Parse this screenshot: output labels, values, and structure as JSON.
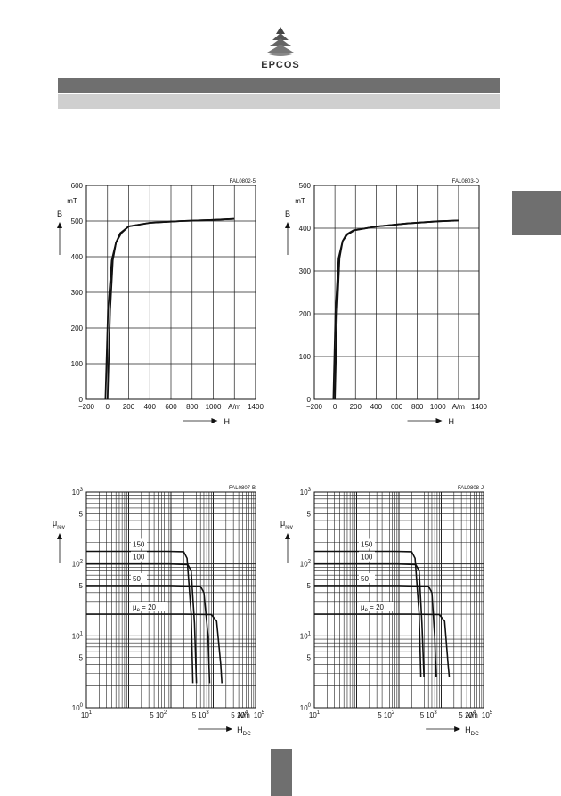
{
  "brand": {
    "name": "EPCOS"
  },
  "chart_data": [
    {
      "type": "line",
      "code": "FAL0802-5",
      "xlabel": "H",
      "x_unit": "A/m",
      "ylabel": "B",
      "y_unit": "mT",
      "xlim": [
        -200,
        1400
      ],
      "ylim": [
        0,
        600
      ],
      "x_ticks": [
        "−200",
        "0",
        "200",
        "400",
        "600",
        "800",
        "1000",
        "1400"
      ],
      "y_ticks": [
        "0",
        "100",
        "200",
        "300",
        "400",
        "500",
        "600"
      ],
      "grid": true,
      "series": [
        {
          "x": [
            0,
            25,
            50,
            80,
            120,
            200,
            400,
            700,
            1000,
            1200
          ],
          "y": [
            0,
            250,
            390,
            440,
            466,
            485,
            495,
            500,
            503,
            506
          ]
        },
        {
          "x": [
            -20,
            5,
            40,
            80,
            130,
            200,
            400,
            700,
            1000,
            1200
          ],
          "y": [
            0,
            250,
            390,
            440,
            466,
            485,
            495,
            500,
            503,
            506
          ]
        }
      ]
    },
    {
      "type": "line",
      "code": "FAL0803-D",
      "xlabel": "H",
      "x_unit": "A/m",
      "ylabel": "B",
      "y_unit": "mT",
      "xlim": [
        -200,
        1400
      ],
      "ylim": [
        0,
        500
      ],
      "x_ticks": [
        "−200",
        "0",
        "200",
        "400",
        "600",
        "800",
        "1000",
        "1400"
      ],
      "y_ticks": [
        "0",
        "100",
        "200",
        "300",
        "400",
        "500"
      ],
      "grid": true,
      "series": [
        {
          "x": [
            0,
            20,
            45,
            75,
            110,
            180,
            400,
            700,
            1000,
            1200
          ],
          "y": [
            0,
            200,
            330,
            370,
            385,
            395,
            404,
            411,
            416,
            418
          ]
        },
        {
          "x": [
            -15,
            5,
            35,
            75,
            120,
            190,
            400,
            700,
            1000,
            1200
          ],
          "y": [
            0,
            200,
            330,
            370,
            385,
            395,
            404,
            411,
            416,
            418
          ]
        }
      ]
    },
    {
      "type": "line",
      "code": "FAL0807-B",
      "xlabel": "H_DC",
      "x_unit": "A/m",
      "ylabel": "μ_rev",
      "x_scale": "log",
      "y_scale": "log",
      "xlim": [
        10,
        100000
      ],
      "ylim": [
        1,
        1000
      ],
      "x_ticks": [
        "10^1",
        "5 10^2",
        "5 10^3",
        "5 10^4",
        "10^5"
      ],
      "y_ticks": [
        "10^0",
        "5",
        "10^1",
        "5",
        "10^2",
        "5",
        "10^3"
      ],
      "grid": true,
      "series": [
        {
          "name": "150",
          "x": [
            10,
            800,
            2000,
            2400,
            3000,
            3300
          ],
          "y": [
            150,
            150,
            148,
            120,
            20,
            2.2
          ]
        },
        {
          "name": "100",
          "x": [
            10,
            900,
            2500,
            3000,
            3600,
            4000
          ],
          "y": [
            100,
            100,
            98,
            80,
            15,
            2.2
          ]
        },
        {
          "name": "50",
          "x": [
            10,
            1000,
            5000,
            6000,
            7500,
            8200
          ],
          "y": [
            50,
            50,
            49,
            40,
            10,
            2.2
          ]
        },
        {
          "name": "μe = 20",
          "x": [
            10,
            2000,
            9000,
            12000,
            15000,
            16000
          ],
          "y": [
            20,
            20,
            19.8,
            16,
            4,
            2.2
          ]
        }
      ]
    },
    {
      "type": "line",
      "code": "FAL0808-J",
      "xlabel": "H_DC",
      "x_unit": "A/m",
      "ylabel": "μ_rev",
      "x_scale": "log",
      "y_scale": "log",
      "xlim": [
        10,
        100000
      ],
      "ylim": [
        1,
        1000
      ],
      "x_ticks": [
        "10^1",
        "5 10^2",
        "5 10^3",
        "5 10^4",
        "10^5"
      ],
      "y_ticks": [
        "10^0",
        "5",
        "10^1",
        "5",
        "10^2",
        "5",
        "10^3"
      ],
      "grid": true,
      "series": [
        {
          "name": "150",
          "x": [
            10,
            800,
            2000,
            2400,
            3000,
            3300
          ],
          "y": [
            150,
            150,
            148,
            120,
            20,
            2.7
          ]
        },
        {
          "name": "100",
          "x": [
            10,
            900,
            2500,
            3000,
            3500,
            3900
          ],
          "y": [
            100,
            100,
            98,
            80,
            15,
            2.7
          ]
        },
        {
          "name": "50",
          "x": [
            10,
            1000,
            5000,
            6000,
            7000,
            7600
          ],
          "y": [
            50,
            50,
            49,
            40,
            10,
            2.7
          ]
        },
        {
          "name": "μe = 20",
          "x": [
            10,
            2000,
            9000,
            12000,
            14500,
            15500
          ],
          "y": [
            20,
            20,
            19.8,
            16,
            4,
            2.7
          ]
        }
      ]
    }
  ]
}
